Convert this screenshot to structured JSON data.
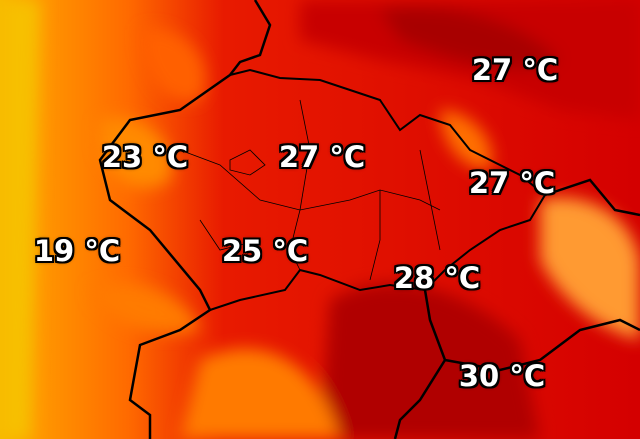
{
  "map": {
    "colors": {
      "cool": "#f7b500",
      "warm": "#ff7a00",
      "hot": "#e00000",
      "very_hot": "#b00000",
      "border": "#000000"
    },
    "labels": [
      {
        "id": "ne",
        "text": "27 °C"
      },
      {
        "id": "west",
        "text": "23 °C"
      },
      {
        "id": "north-central",
        "text": "27 °C"
      },
      {
        "id": "east",
        "text": "27 °C"
      },
      {
        "id": "far-west",
        "text": "19 °C"
      },
      {
        "id": "south-central",
        "text": "25 °C"
      },
      {
        "id": "south-east",
        "text": "28 °C"
      },
      {
        "id": "far-south-east",
        "text": "30 °C"
      }
    ]
  }
}
